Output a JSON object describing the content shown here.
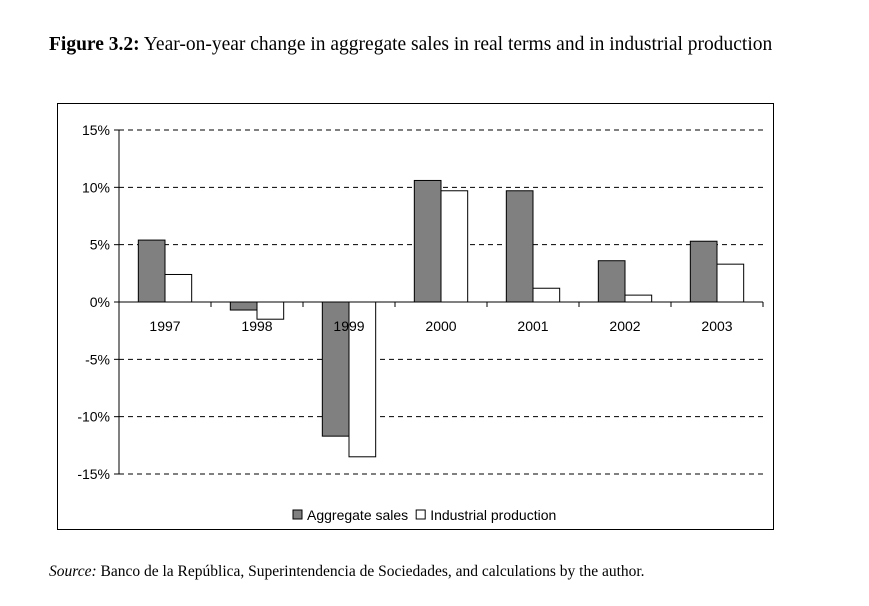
{
  "figure": {
    "label": "Figure 3.2:",
    "caption": "Year-on-year change in aggregate sales in real terms and in industrial production"
  },
  "source": {
    "label": "Source:",
    "text": "Banco de la República, Superintendencia de Sociedades, and calculations by the author."
  },
  "chart_data": {
    "type": "bar",
    "title": "Year-on-year change in aggregate sales in real terms and in industrial production",
    "categories": [
      "1997",
      "1998",
      "1999",
      "2000",
      "2001",
      "2002",
      "2003"
    ],
    "series": [
      {
        "name": "Aggregate sales",
        "color": "#808080",
        "values": [
          5.4,
          -0.7,
          -11.7,
          10.6,
          9.7,
          3.6,
          5.3
        ]
      },
      {
        "name": "Industrial production",
        "color": "#ffffff",
        "values": [
          2.4,
          -1.5,
          -13.5,
          9.7,
          1.2,
          0.6,
          3.3
        ]
      }
    ],
    "ylim": [
      -15,
      15
    ],
    "yticks": [
      15,
      10,
      5,
      0,
      -5,
      -10,
      -15
    ],
    "ytick_labels": [
      "15%",
      "10%",
      "5%",
      "0%",
      "-5%",
      "-10%",
      "-15%"
    ],
    "grid": "dashed horizontal",
    "legend": "bottom",
    "xlabel": "",
    "ylabel": ""
  }
}
